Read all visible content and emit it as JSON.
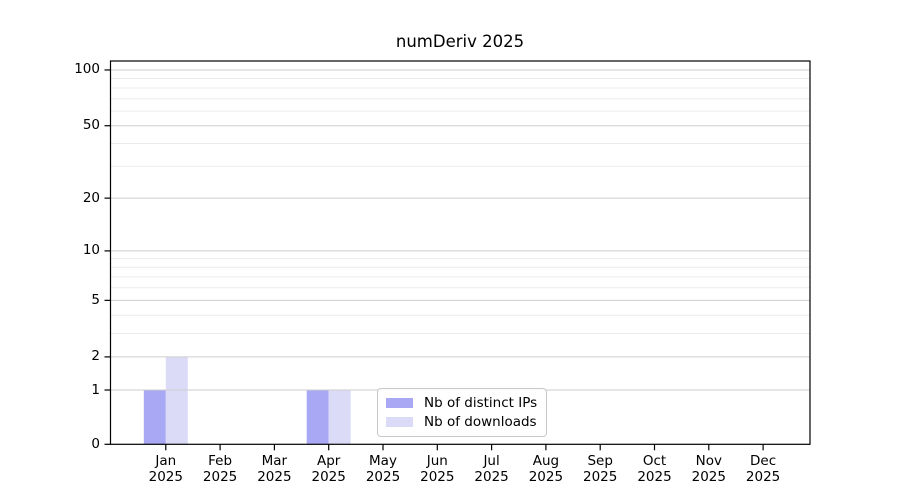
{
  "chart_data": {
    "type": "bar",
    "title": "numDeriv 2025",
    "categories": [
      "Jan",
      "Feb",
      "Mar",
      "Apr",
      "May",
      "Jun",
      "Jul",
      "Aug",
      "Sep",
      "Oct",
      "Nov",
      "Dec"
    ],
    "xtick_year": "2025",
    "series": [
      {
        "name": "Nb of distinct IPs",
        "color": "#a8a8f4",
        "values": [
          1,
          0,
          0,
          1,
          0,
          0,
          0,
          0,
          0,
          0,
          0,
          0
        ]
      },
      {
        "name": "Nb of downloads",
        "color": "#dbdbf8",
        "values": [
          2,
          0,
          0,
          1,
          0,
          0,
          0,
          0,
          0,
          0,
          0,
          0
        ]
      }
    ],
    "yticks": [
      0,
      1,
      2,
      5,
      10,
      20,
      50,
      100
    ],
    "minor_yticks": [
      3,
      4,
      6,
      7,
      8,
      9,
      30,
      40,
      60,
      70,
      80,
      90
    ],
    "scale": "log1p",
    "ylim": [
      0,
      100
    ],
    "grid": "horizontal",
    "legend_position": "lower center",
    "colors": {
      "spine": "#000000",
      "major_grid": "#cdcdcd",
      "minor_grid": "#ebebeb",
      "background": "#ffffff"
    }
  }
}
